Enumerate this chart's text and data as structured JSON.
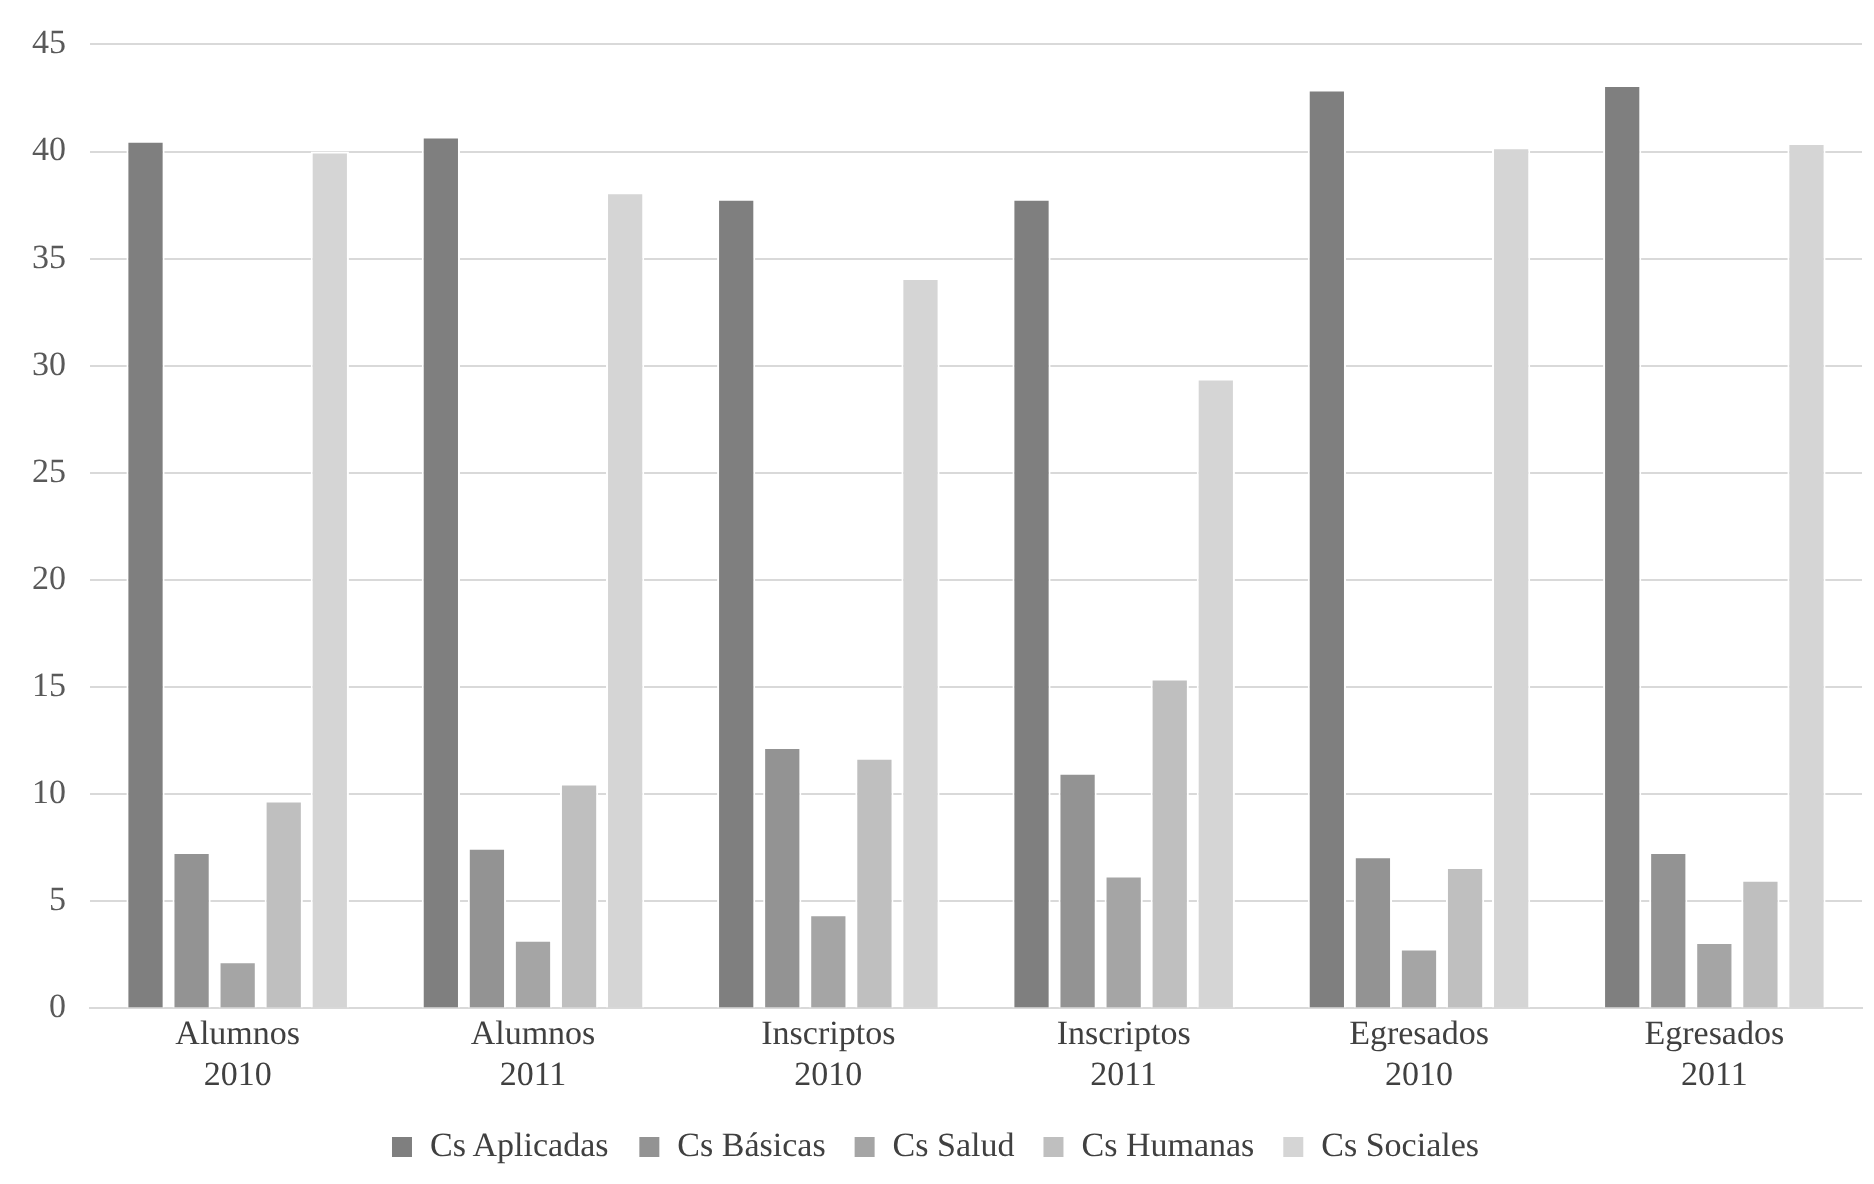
{
  "chart_data": {
    "type": "bar",
    "categories": [
      "Alumnos 2010",
      "Alumnos 2011",
      "Inscriptos 2010",
      "Inscriptos 2011",
      "Egresados 2010",
      "Egresados 2011"
    ],
    "series": [
      {
        "name": "Cs Aplicadas",
        "color": "#7f7f7f",
        "values": [
          40.5,
          40.7,
          37.8,
          37.8,
          42.9,
          43.1
        ]
      },
      {
        "name": "Cs Básicas",
        "color": "#939393",
        "values": [
          7.3,
          7.5,
          12.2,
          11.0,
          7.1,
          7.3
        ]
      },
      {
        "name": "Cs Salud",
        "color": "#a5a5a5",
        "values": [
          2.2,
          3.2,
          4.4,
          6.2,
          2.8,
          3.1
        ]
      },
      {
        "name": "Cs Humanas",
        "color": "#bfbfbf",
        "values": [
          9.7,
          10.5,
          11.7,
          15.4,
          6.6,
          6.0
        ]
      },
      {
        "name": "Cs Sociales",
        "color": "#d5d5d5",
        "values": [
          40.0,
          38.1,
          34.1,
          29.4,
          40.2,
          40.4
        ]
      }
    ],
    "ylim": [
      0,
      45
    ],
    "yticks": [
      0,
      5,
      10,
      15,
      20,
      25,
      30,
      35,
      40,
      45
    ],
    "grid": "y",
    "legend": "bottom"
  }
}
